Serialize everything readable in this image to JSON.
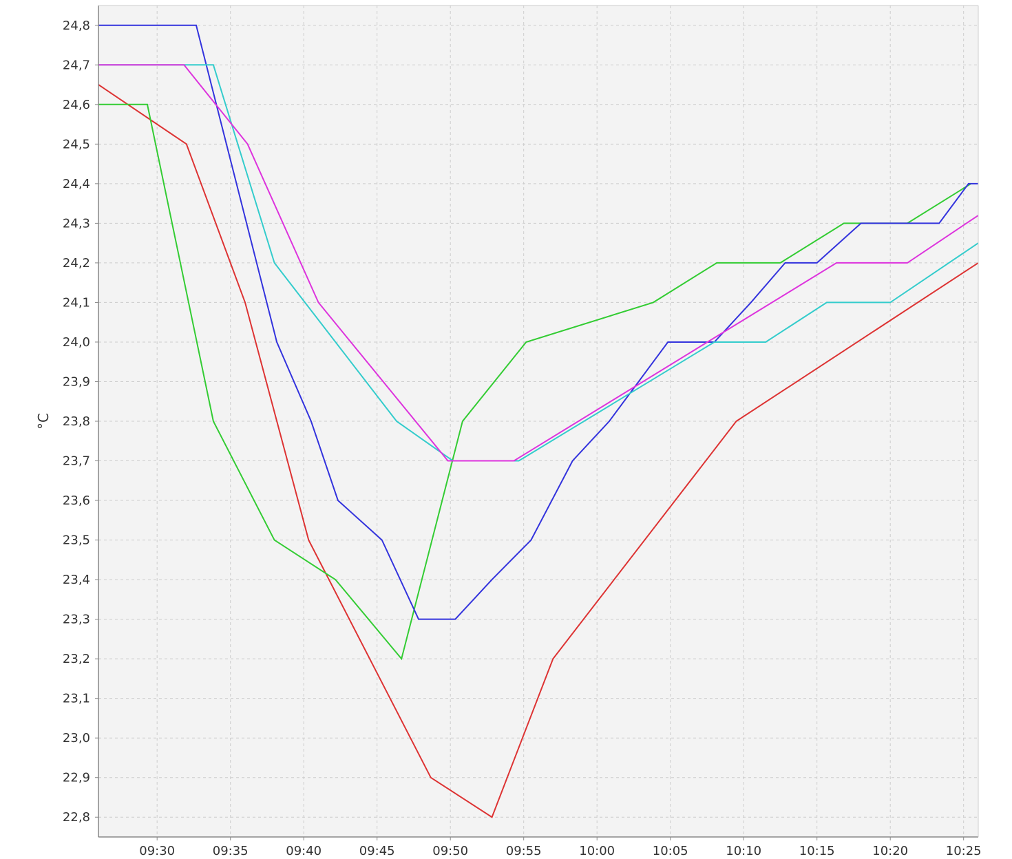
{
  "chart_data": {
    "type": "line",
    "title": "",
    "xlabel": "",
    "ylabel": "°C",
    "xlim": [
      "09:26",
      "10:26"
    ],
    "ylim": [
      22.75,
      24.85
    ],
    "grid": true,
    "legend": "none",
    "plot_background": "#f3f3f3",
    "grid_color": "#cccccc",
    "y_ticks": [
      "22,8",
      "22,9",
      "23,0",
      "23,1",
      "23,2",
      "23,3",
      "23,4",
      "23,5",
      "23,6",
      "23,7",
      "23,8",
      "23,9",
      "24,0",
      "24,1",
      "24,2",
      "24,3",
      "24,4",
      "24,5",
      "24,6",
      "24,7",
      "24,8"
    ],
    "x_ticks": [
      "09:30",
      "09:35",
      "09:40",
      "09:45",
      "09:50",
      "09:55",
      "10:00",
      "10:05",
      "10:10",
      "10:15",
      "10:20",
      "10:25"
    ],
    "series": [
      {
        "color": "#dd3333",
        "points": [
          [
            "09:26",
            24.65
          ],
          [
            "09:32",
            24.5
          ],
          [
            "09:36",
            24.1
          ],
          [
            "09:40:20",
            23.5
          ],
          [
            "09:48:40",
            22.9
          ],
          [
            "09:52:50",
            22.8
          ],
          [
            "09:57",
            23.2
          ],
          [
            "10:09:30",
            23.8
          ],
          [
            "10:26",
            24.2
          ]
        ]
      },
      {
        "color": "#33cc33",
        "points": [
          [
            "09:26",
            24.6
          ],
          [
            "09:29:20",
            24.6
          ],
          [
            "09:33:50",
            23.8
          ],
          [
            "09:38",
            23.5
          ],
          [
            "09:42:10",
            23.4
          ],
          [
            "09:46:40",
            23.2
          ],
          [
            "09:50:50",
            23.8
          ],
          [
            "09:55:10",
            24.0
          ],
          [
            "10:03:50",
            24.1
          ],
          [
            "10:08:10",
            24.2
          ],
          [
            "10:12:30",
            24.2
          ],
          [
            "10:16:50",
            24.3
          ],
          [
            "10:21:10",
            24.3
          ],
          [
            "10:25:30",
            24.4
          ]
        ]
      },
      {
        "color": "#3333dd",
        "points": [
          [
            "09:26",
            24.8
          ],
          [
            "09:32:40",
            24.8
          ],
          [
            "09:38:10",
            24.0
          ],
          [
            "09:40:30",
            23.8
          ],
          [
            "09:42:20",
            23.6
          ],
          [
            "09:45:20",
            23.5
          ],
          [
            "09:47:50",
            23.3
          ],
          [
            "09:50:20",
            23.3
          ],
          [
            "09:52:50",
            23.4
          ],
          [
            "09:55:30",
            23.5
          ],
          [
            "09:58:20",
            23.7
          ],
          [
            "10:00:50",
            23.8
          ],
          [
            "10:04:50",
            24.0
          ],
          [
            "10:08",
            24.0
          ],
          [
            "10:10:30",
            24.1
          ],
          [
            "10:12:50",
            24.2
          ],
          [
            "10:15",
            24.2
          ],
          [
            "10:18",
            24.3
          ],
          [
            "10:23:20",
            24.3
          ],
          [
            "10:25:20",
            24.4
          ],
          [
            "10:26",
            24.4
          ]
        ]
      },
      {
        "color": "#33cccc",
        "points": [
          [
            "09:26",
            24.7
          ],
          [
            "09:33:50",
            24.7
          ],
          [
            "09:38",
            24.2
          ],
          [
            "09:46:20",
            23.8
          ],
          [
            "09:50:10",
            23.7
          ],
          [
            "09:54:40",
            23.7
          ],
          [
            "10:08",
            24.0
          ],
          [
            "10:11:30",
            24.0
          ],
          [
            "10:15:40",
            24.1
          ],
          [
            "10:20",
            24.1
          ],
          [
            "10:26",
            24.25
          ]
        ]
      },
      {
        "color": "#dd33dd",
        "points": [
          [
            "09:26",
            24.7
          ],
          [
            "09:31:50",
            24.7
          ],
          [
            "09:36:10",
            24.5
          ],
          [
            "09:41",
            24.1
          ],
          [
            "09:49:50",
            23.7
          ],
          [
            "09:54:20",
            23.7
          ],
          [
            "10:16:20",
            24.2
          ],
          [
            "10:21:10",
            24.2
          ],
          [
            "10:26",
            24.32
          ]
        ]
      }
    ]
  }
}
